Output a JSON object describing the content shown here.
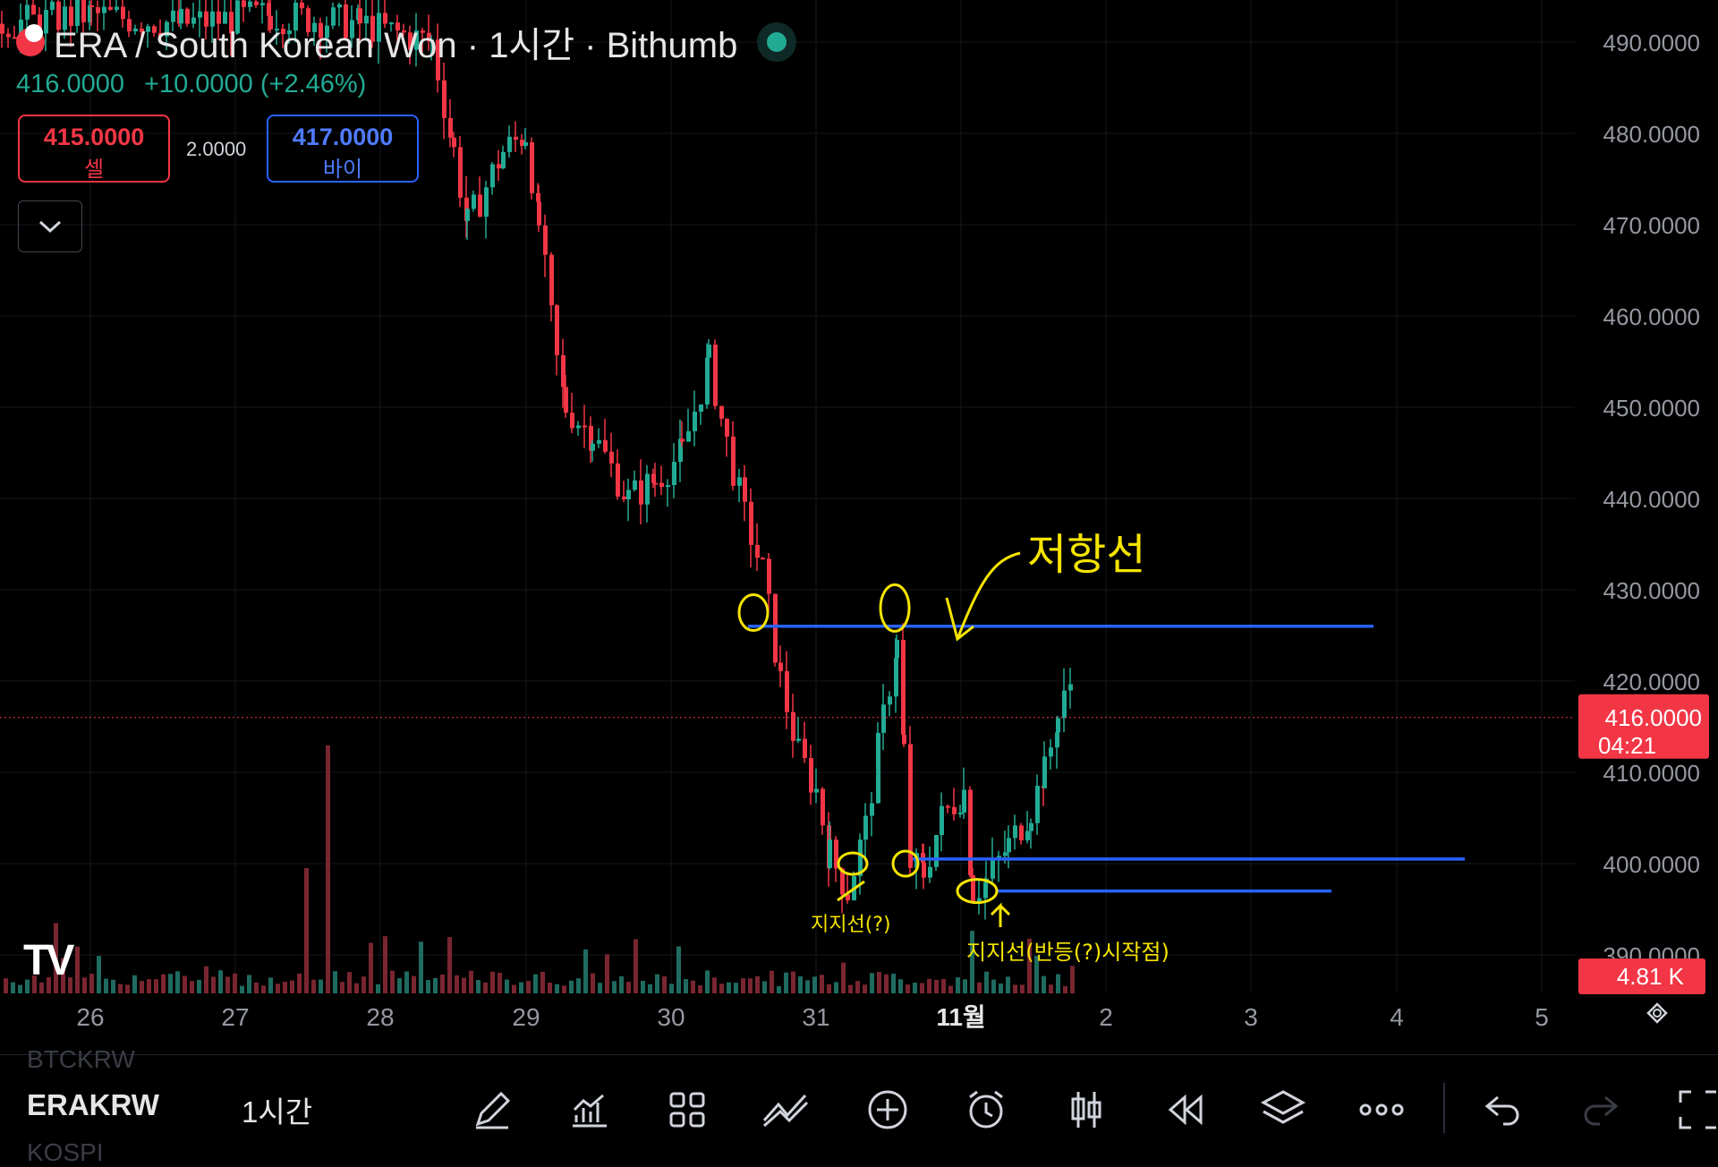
{
  "header": {
    "title": "ERA / South Korean Won · 1시간 · Bithumb",
    "last_price": "416.0000",
    "change": "+10.0000 (+2.46%)"
  },
  "trade": {
    "sell_price": "415.0000",
    "sell_label": "셀",
    "spread": "2.0000",
    "buy_price": "417.0000",
    "buy_label": "바이"
  },
  "price_scale": {
    "labels": [
      "490.0000",
      "480.0000",
      "470.0000",
      "460.0000",
      "450.0000",
      "440.0000",
      "430.0000",
      "420.0000",
      "410.0000",
      "400.0000",
      "390.0000"
    ],
    "current_price": "416.0000",
    "countdown": "04:21",
    "volume_label": "4.81 K"
  },
  "time_axis": {
    "labels": [
      "26",
      "27",
      "28",
      "29",
      "30",
      "31",
      "11월",
      "2",
      "3",
      "4",
      "5"
    ]
  },
  "annotations": {
    "resistance_text": "저항선",
    "support_text_1": "지지선(?)",
    "support_text_2": "지지선(반등(?)시작점)"
  },
  "chart_data": {
    "type": "candlestick",
    "interval": "1시간",
    "ylim": [
      386,
      494
    ],
    "x": [
      "26",
      "27",
      "28",
      "29",
      "30",
      "31",
      "11월",
      "2",
      "3",
      "4",
      "5"
    ],
    "horizontal_lines": [
      {
        "price": 426,
        "color": "#2962ff"
      },
      {
        "price": 400.5,
        "color": "#2962ff"
      },
      {
        "price": 397,
        "color": "#2962ff"
      }
    ],
    "key_points": [
      {
        "time": "28",
        "price": 490
      },
      {
        "time": "28.5",
        "price": 470
      },
      {
        "time": "29",
        "price": 480
      },
      {
        "time": "29.3",
        "price": 450
      },
      {
        "time": "30",
        "price": 455
      },
      {
        "time": "30.5",
        "price": 440
      },
      {
        "time": "31",
        "price": 415
      },
      {
        "time": "31.2",
        "price": 400
      },
      {
        "time": "31.5",
        "price": 425
      },
      {
        "time": "31.6",
        "price": 400
      },
      {
        "time": "11월",
        "price": 397
      },
      {
        "time": "11월.7",
        "price": 420
      }
    ],
    "last_price": 416,
    "colors": {
      "up": "#22ab94",
      "down": "#f23645"
    }
  },
  "toolbar": {
    "symbol": "ERAKRW",
    "timeframe": "1시간",
    "ghost_above": "BTCKRW",
    "ghost_below": "KOSPI",
    "tools": [
      "pencil-icon",
      "chart-icon",
      "grid-icon",
      "indicator-icon",
      "plus-circle-icon",
      "alarm-icon",
      "candle-icon",
      "replay-icon",
      "layers-icon",
      "more-icon",
      "undo-icon",
      "redo-icon",
      "fullscreen-icon"
    ]
  }
}
